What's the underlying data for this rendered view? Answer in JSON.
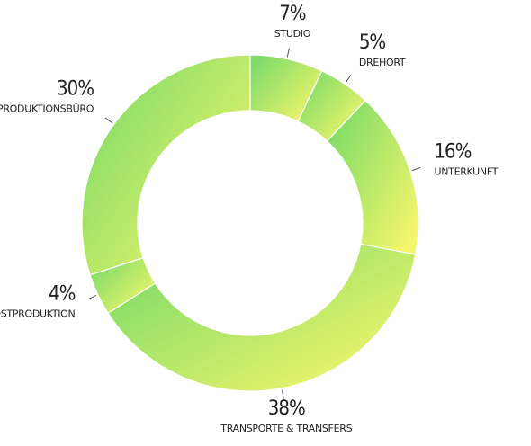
{
  "chart_data": {
    "type": "donut",
    "categories": [
      "STUDIO",
      "DREHORT",
      "UNTERKUNFT",
      "TRANSPORTE & TRANSFERS",
      "POSTPRODUKTION",
      "PRODUKTIONSBÜRO"
    ],
    "values": [
      7,
      5,
      16,
      38,
      4,
      30
    ],
    "value_labels": [
      "7%",
      "5%",
      "16%",
      "38%",
      "4%",
      "30%"
    ],
    "gradient": [
      "#7fdc68",
      "#f3f56c"
    ]
  }
}
